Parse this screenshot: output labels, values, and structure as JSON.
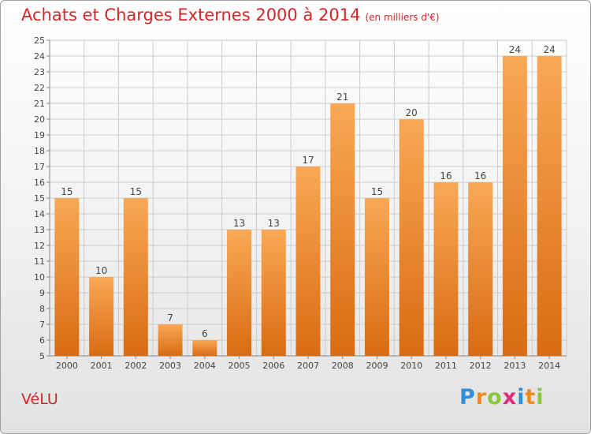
{
  "chart_data": {
    "type": "bar",
    "title": "Achats et Charges Externes 2000 à 2014",
    "subtitle": "(en milliers d'€)",
    "categories": [
      "2000",
      "2001",
      "2002",
      "2003",
      "2004",
      "2005",
      "2006",
      "2007",
      "2008",
      "2009",
      "2010",
      "2011",
      "2012",
      "2013",
      "2014"
    ],
    "values": [
      15,
      10,
      15,
      7,
      6,
      13,
      13,
      17,
      21,
      15,
      20,
      16,
      16,
      24,
      24
    ],
    "ylim": [
      5,
      25
    ],
    "yticks": [
      5,
      6,
      7,
      8,
      9,
      10,
      11,
      12,
      13,
      14,
      15,
      16,
      17,
      18,
      19,
      20,
      21,
      22,
      23,
      24,
      25
    ],
    "grid": true,
    "legend": "none",
    "colors": {
      "bar_light": "#f9a855",
      "bar_dark": "#d96b12",
      "title": "#d2272a",
      "grid": "#cccccc"
    }
  },
  "place": "VéLU",
  "logo": {
    "letters": [
      {
        "ch": "P",
        "color": "#2f8fd8"
      },
      {
        "ch": "r",
        "color": "#f08a1c"
      },
      {
        "ch": "o",
        "color": "#8cc63f"
      },
      {
        "ch": "x",
        "color": "#e02a7a"
      },
      {
        "ch": "i",
        "color": "#2f8fd8"
      },
      {
        "ch": "t",
        "color": "#f08a1c"
      },
      {
        "ch": "i",
        "color": "#8cc63f"
      }
    ]
  }
}
